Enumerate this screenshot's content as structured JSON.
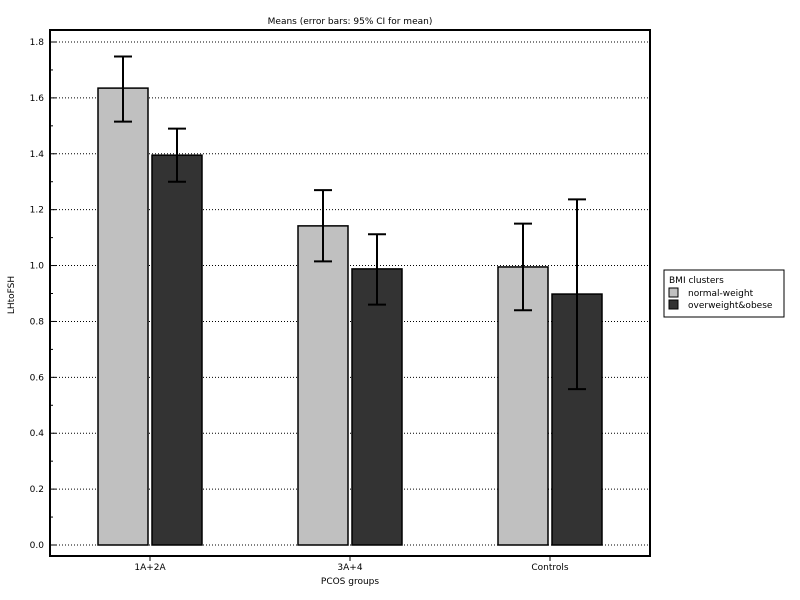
{
  "chart_data": {
    "type": "bar",
    "title": "Means  (error bars: 95% CI for mean)",
    "xlabel": "PCOS groups",
    "ylabel": "LHtoFSH",
    "categories": [
      "1A+2A",
      "3A+4",
      "Controls"
    ],
    "ylim": [
      0,
      1.8
    ],
    "yticks": [
      "0.0",
      "0.2",
      "0.4",
      "0.6",
      "0.8",
      "1.0",
      "1.2",
      "1.4",
      "1.6",
      "1.8"
    ],
    "grid": "horizontal dotted",
    "legend": {
      "title": "BMI clusters",
      "placement": "right"
    },
    "series": [
      {
        "name": "normal-weight",
        "color": "#c0c0c0",
        "values": [
          1.635,
          1.142,
          0.995
        ],
        "ci_low": [
          1.515,
          1.015,
          0.84
        ],
        "ci_high": [
          1.748,
          1.27,
          1.15
        ]
      },
      {
        "name": "overweight&obese",
        "color": "#333333",
        "values": [
          1.395,
          0.988,
          0.898
        ],
        "ci_low": [
          1.3,
          0.86,
          0.558
        ],
        "ci_high": [
          1.49,
          1.112,
          1.237
        ]
      }
    ]
  }
}
